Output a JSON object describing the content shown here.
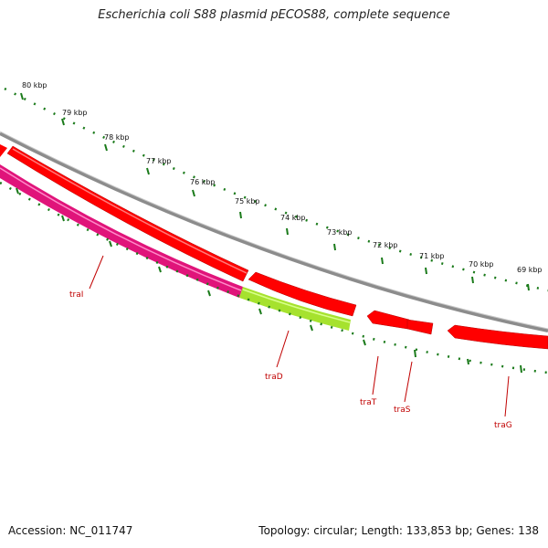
{
  "title": "Escherichia coli S88 plasmid pECOS88, complete sequence",
  "footer": {
    "accession": "Accession: NC_011747",
    "summary": "Topology: circular; Length: 133,853 bp; Genes: 138"
  },
  "kbp_labels": [
    "80 kbp",
    "79 kbp",
    "78 kbp",
    "77 kbp",
    "76 kbp",
    "75 kbp",
    "74 kbp",
    "73 kbp",
    "72 kbp",
    "71 kbp",
    "70 kbp",
    "69 kbp"
  ],
  "genes": [
    {
      "name": "traI",
      "color": "#e0147a"
    },
    {
      "name": "traD",
      "color": "#a6e22e"
    },
    {
      "name": "traT",
      "color": "#ff0000"
    },
    {
      "name": "traS",
      "color": "#ff0000"
    },
    {
      "name": "traG",
      "color": "#ff0000"
    }
  ],
  "colors": {
    "backbone": "#8c8c8c",
    "forward_genes": "#ff0000",
    "ticks": "#1a7a1a",
    "labels": "#c00000"
  }
}
